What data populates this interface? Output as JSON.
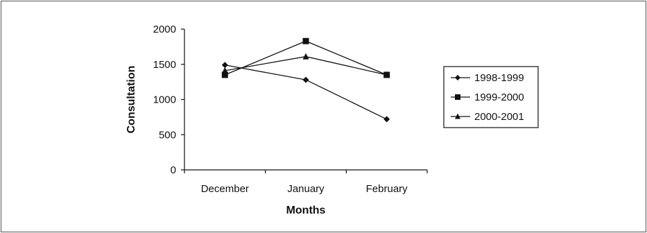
{
  "chart_data": {
    "type": "line",
    "categories": [
      "December",
      "January",
      "February"
    ],
    "series": [
      {
        "name": "1998-1999",
        "marker": "diamond",
        "values": [
          1490,
          1280,
          720
        ]
      },
      {
        "name": "1999-2000",
        "marker": "square",
        "values": [
          1350,
          1830,
          1350
        ]
      },
      {
        "name": "2000-2001",
        "marker": "triangle",
        "values": [
          1410,
          1610,
          1350
        ]
      }
    ],
    "title": "",
    "xlabel": "Months",
    "ylabel": "Consultation",
    "ylim": [
      0,
      2000
    ],
    "yticks": [
      0,
      500,
      1000,
      1500,
      2000
    ],
    "grid": false,
    "legend": "right",
    "colors": {
      "line": "#111111",
      "axis": "#111111",
      "border": "#555555"
    }
  }
}
